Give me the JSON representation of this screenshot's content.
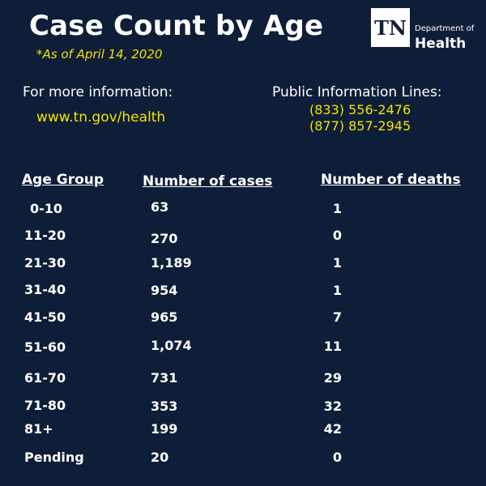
{
  "header": {
    "title": "Case Count by Age",
    "subtitle": "*As of April 14, 2020"
  },
  "logo": {
    "mark": "TN",
    "line1": "Department of",
    "line2": "Health"
  },
  "info": {
    "more_label": "For more information:",
    "website": "www.tn.gov/health",
    "lines_label": "Public Information Lines:",
    "phones": [
      "(833) 556-2476",
      "(877) 857-2945"
    ]
  },
  "table": {
    "headers": [
      "Age Group",
      "Number of cases",
      "Number of deaths"
    ],
    "rows": [
      {
        "age": "0-10",
        "cases": "63",
        "deaths": "1"
      },
      {
        "age": "11-20",
        "cases": "270",
        "deaths": "0"
      },
      {
        "age": "21-30",
        "cases": "1,189",
        "deaths": "1"
      },
      {
        "age": "31-40",
        "cases": "954",
        "deaths": "1"
      },
      {
        "age": "41-50",
        "cases": "965",
        "deaths": "7"
      },
      {
        "age": "51-60",
        "cases": "1,074",
        "deaths": "11"
      },
      {
        "age": "61-70",
        "cases": "731",
        "deaths": "29"
      },
      {
        "age": "71-80",
        "cases": "353",
        "deaths": "32"
      },
      {
        "age": "81+",
        "cases": "199",
        "deaths": "42"
      },
      {
        "age": "Pending",
        "cases": "20",
        "deaths": "0"
      }
    ]
  },
  "colors": {
    "background": "#0f1e38",
    "accent_yellow": "#f2e200",
    "text": "#ffffff"
  }
}
